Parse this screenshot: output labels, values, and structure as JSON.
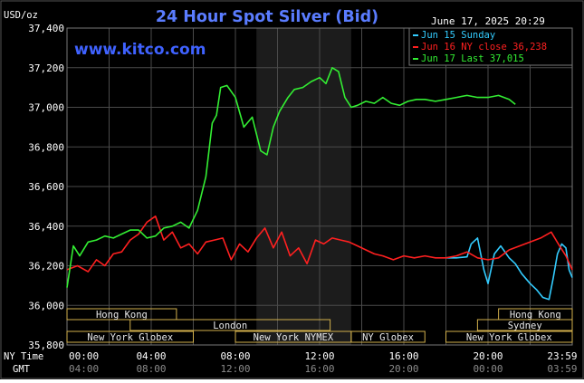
{
  "chart_data": {
    "type": "line",
    "title": "24 Hour Spot Silver (Bid)",
    "timestamp": "June 17, 2025 20:29",
    "watermark": "www.kitco.com",
    "ylabel": "USD/oz",
    "ylim": [
      35800,
      37400
    ],
    "y_ticks": [
      35800,
      36000,
      36200,
      36400,
      36600,
      36800,
      37000,
      37200,
      37400
    ],
    "y_tick_labels": [
      "35,800",
      "36,000",
      "36,200",
      "36,400",
      "36,600",
      "36,800",
      "37,000",
      "37,200",
      "37,400"
    ],
    "xlim": [
      0,
      24
    ],
    "x_tick_labels_ny": [
      "00:00",
      "04:00",
      "08:00",
      "12:00",
      "16:00",
      "20:00",
      "23:59"
    ],
    "x_tick_labels_gmt": [
      "04:00",
      "08:00",
      "12:00",
      "16:00",
      "20:00",
      "00:00",
      "03:59"
    ],
    "x_axis_label_ny": "NY Time",
    "x_axis_label_gmt": "GMT",
    "shaded_session": [
      9,
      13.5
    ],
    "grid": true,
    "legend_position": "top-right",
    "sessions": [
      {
        "name": "Hong Kong",
        "start": 0,
        "end": 5.2,
        "row": 0
      },
      {
        "name": "Hong Kong",
        "start": 20.5,
        "end": 24,
        "row": 0
      },
      {
        "name": "London",
        "start": 3,
        "end": 12.5,
        "row": 1
      },
      {
        "name": "Sydney",
        "start": 19.5,
        "end": 24,
        "row": 1
      },
      {
        "name": "New York Globex",
        "start": 0,
        "end": 6,
        "row": 2
      },
      {
        "name": "New York NYMEX",
        "start": 8,
        "end": 13.5,
        "row": 2
      },
      {
        "name": "NY Globex",
        "start": 13.5,
        "end": 17,
        "row": 2
      },
      {
        "name": "New York Globex",
        "start": 18,
        "end": 24,
        "row": 2
      }
    ],
    "series": [
      {
        "name": "Jun 15 Sunday",
        "color": "#33ccff",
        "x": [
          18.0,
          18.5,
          19.0,
          19.2,
          19.5,
          19.8,
          20.0,
          20.3,
          20.6,
          21.0,
          21.3,
          21.6,
          22.0,
          22.3,
          22.6,
          22.9,
          23.1,
          23.3,
          23.5,
          23.7,
          23.85,
          24.0
        ],
        "y": [
          36240,
          36240,
          36245,
          36310,
          36340,
          36180,
          36110,
          36260,
          36300,
          36240,
          36210,
          36160,
          36110,
          36080,
          36040,
          36030,
          36140,
          36260,
          36310,
          36290,
          36180,
          36140
        ]
      },
      {
        "name": "Jun 16 NY close 36,238",
        "color": "#ff2020",
        "x": [
          0.0,
          0.5,
          1.0,
          1.4,
          1.8,
          2.2,
          2.6,
          3.0,
          3.4,
          3.8,
          4.2,
          4.6,
          5.0,
          5.4,
          5.8,
          6.2,
          6.6,
          7.0,
          7.4,
          7.8,
          8.2,
          8.6,
          9.0,
          9.4,
          9.8,
          10.2,
          10.6,
          11.0,
          11.4,
          11.8,
          12.2,
          12.6,
          13.0,
          13.4,
          13.8,
          14.2,
          14.6,
          15.0,
          15.5,
          16.0,
          16.5,
          17.0,
          17.5,
          18.0,
          18.5,
          19.0,
          19.5,
          20.0,
          20.5,
          21.0,
          21.5,
          22.0,
          22.5,
          23.0,
          23.4,
          23.7,
          24.0
        ],
        "y": [
          36180,
          36200,
          36170,
          36230,
          36200,
          36260,
          36270,
          36330,
          36360,
          36420,
          36450,
          36330,
          36370,
          36290,
          36310,
          36260,
          36320,
          36330,
          36340,
          36230,
          36310,
          36270,
          36340,
          36390,
          36290,
          36370,
          36250,
          36290,
          36210,
          36330,
          36310,
          36340,
          36330,
          36320,
          36300,
          36280,
          36260,
          36250,
          36230,
          36250,
          36240,
          36250,
          36240,
          36240,
          36250,
          36270,
          36240,
          36230,
          36240,
          36280,
          36300,
          36320,
          36340,
          36370,
          36300,
          36250,
          36180
        ]
      },
      {
        "name": "Jun 17 Last 37,015",
        "color": "#33ee33",
        "x": [
          0.0,
          0.3,
          0.6,
          1.0,
          1.4,
          1.8,
          2.2,
          2.6,
          3.0,
          3.4,
          3.8,
          4.2,
          4.6,
          5.0,
          5.4,
          5.8,
          6.2,
          6.6,
          6.9,
          7.1,
          7.3,
          7.6,
          8.0,
          8.4,
          8.8,
          9.2,
          9.5,
          9.8,
          10.1,
          10.5,
          10.8,
          11.2,
          11.6,
          12.0,
          12.3,
          12.6,
          12.9,
          13.2,
          13.5,
          13.8,
          14.2,
          14.6,
          15.0,
          15.4,
          15.8,
          16.2,
          16.6,
          17.0,
          17.5,
          18.0,
          18.5,
          19.0,
          19.5,
          20.0,
          20.5,
          21.0,
          21.3
        ],
        "y": [
          36090,
          36300,
          36250,
          36320,
          36330,
          36350,
          36340,
          36360,
          36380,
          36380,
          36340,
          36350,
          36390,
          36400,
          36420,
          36390,
          36480,
          36650,
          36920,
          36960,
          37100,
          37110,
          37050,
          36900,
          36950,
          36780,
          36760,
          36900,
          36980,
          37050,
          37090,
          37100,
          37130,
          37150,
          37120,
          37200,
          37180,
          37050,
          37000,
          37010,
          37030,
          37020,
          37050,
          37020,
          37010,
          37030,
          37040,
          37040,
          37030,
          37040,
          37050,
          37060,
          37050,
          37050,
          37060,
          37040,
          37015
        ]
      }
    ]
  }
}
